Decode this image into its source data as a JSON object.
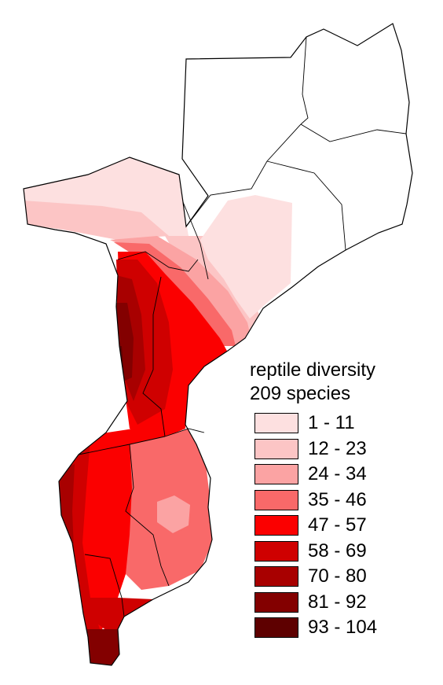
{
  "map": {
    "country": "Mozambique",
    "colors": {
      "outline": "#000000",
      "background": "#ffffff"
    }
  },
  "legend": {
    "title": "reptile diversity",
    "subtitle": "209 species",
    "classes": [
      {
        "label": "1 - 11",
        "min": 1,
        "max": 11,
        "color": "#fde0e0"
      },
      {
        "label": "12 - 23",
        "min": 12,
        "max": 23,
        "color": "#fcc5c5"
      },
      {
        "label": "24 - 34",
        "min": 24,
        "max": 34,
        "color": "#fba3a3"
      },
      {
        "label": "35 - 46",
        "min": 35,
        "max": 46,
        "color": "#f96969"
      },
      {
        "label": "47 - 57",
        "min": 47,
        "max": 57,
        "color": "#fb0000"
      },
      {
        "label": "58 - 69",
        "min": 58,
        "max": 69,
        "color": "#cf0000"
      },
      {
        "label": "70 - 80",
        "min": 70,
        "max": 80,
        "color": "#a80000"
      },
      {
        "label": "81 - 92",
        "min": 81,
        "max": 92,
        "color": "#830000"
      },
      {
        "label": "93 - 104",
        "min": 93,
        "max": 104,
        "color": "#5e0000"
      }
    ]
  }
}
